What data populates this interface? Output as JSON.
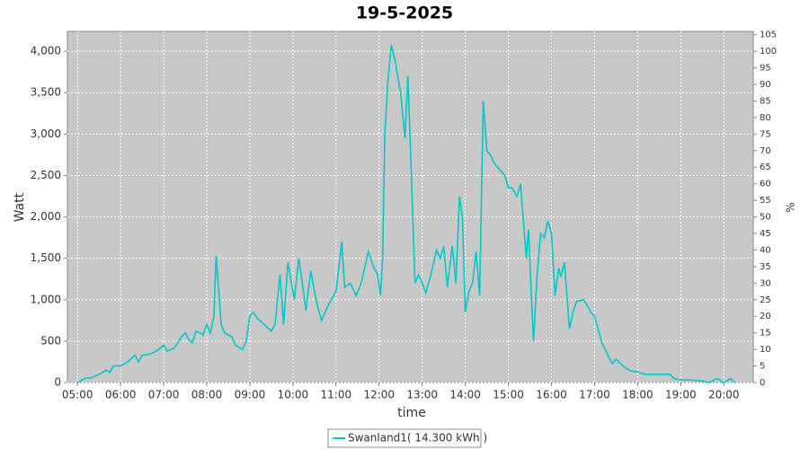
{
  "chart_data": {
    "type": "line",
    "title": "19-5-2025",
    "x_label": "time",
    "y_label": "Watt",
    "y2_label": "%",
    "x": [
      "05:00",
      "05:10",
      "05:20",
      "05:30",
      "05:40",
      "05:45",
      "05:50",
      "06:00",
      "06:10",
      "06:20",
      "06:25",
      "06:30",
      "06:40",
      "06:50",
      "07:00",
      "07:05",
      "07:15",
      "07:25",
      "07:30",
      "07:35",
      "07:40",
      "07:45",
      "07:55",
      "08:00",
      "08:05",
      "08:10",
      "08:13",
      "08:16",
      "08:20",
      "08:25",
      "08:35",
      "08:40",
      "08:50",
      "08:55",
      "09:00",
      "09:05",
      "09:10",
      "09:20",
      "09:30",
      "09:35",
      "09:42",
      "09:47",
      "09:53",
      "09:58",
      "10:02",
      "10:08",
      "10:13",
      "10:18",
      "10:25",
      "10:30",
      "10:35",
      "10:40",
      "10:50",
      "11:00",
      "11:08",
      "11:12",
      "11:20",
      "11:28",
      "11:35",
      "11:45",
      "11:52",
      "11:58",
      "12:02",
      "12:05",
      "12:08",
      "12:12",
      "12:17",
      "12:22",
      "12:30",
      "12:36",
      "12:40",
      "12:45",
      "12:50",
      "12:55",
      "13:00",
      "13:05",
      "13:12",
      "13:20",
      "13:25",
      "13:30",
      "13:35",
      "13:42",
      "13:47",
      "13:52",
      "13:56",
      "14:00",
      "14:05",
      "14:10",
      "14:15",
      "14:20",
      "14:25",
      "14:30",
      "14:35",
      "14:40",
      "14:45",
      "14:55",
      "15:00",
      "15:05",
      "15:12",
      "15:17",
      "15:25",
      "15:28",
      "15:35",
      "15:40",
      "15:45",
      "15:50",
      "15:55",
      "16:00",
      "16:05",
      "16:10",
      "16:13",
      "16:18",
      "16:25",
      "16:30",
      "16:35",
      "16:45",
      "16:55",
      "17:00",
      "17:05",
      "17:10",
      "17:15",
      "17:20",
      "17:25",
      "17:30",
      "17:40",
      "17:50",
      "18:00",
      "18:10",
      "18:30",
      "18:45",
      "18:50",
      "19:00",
      "19:15",
      "19:30",
      "19:40",
      "19:50",
      "20:00",
      "20:10",
      "20:15"
    ],
    "series": [
      {
        "name": "Swanland1( 14.300 kWh )",
        "color": "#00c8c8",
        "values": [
          0,
          50,
          60,
          100,
          150,
          120,
          200,
          200,
          250,
          330,
          250,
          330,
          340,
          380,
          450,
          380,
          420,
          550,
          600,
          520,
          480,
          620,
          580,
          700,
          600,
          800,
          1530,
          1200,
          700,
          600,
          550,
          450,
          400,
          500,
          800,
          850,
          780,
          700,
          620,
          700,
          1300,
          700,
          1450,
          1200,
          1000,
          1500,
          1200,
          870,
          1350,
          1100,
          900,
          750,
          950,
          1100,
          1700,
          1150,
          1200,
          1050,
          1200,
          1580,
          1400,
          1300,
          1050,
          1500,
          3000,
          3600,
          4080,
          3900,
          3500,
          2950,
          3700,
          2500,
          1200,
          1300,
          1200,
          1080,
          1300,
          1600,
          1500,
          1650,
          1150,
          1650,
          1200,
          2250,
          2000,
          850,
          1100,
          1200,
          1580,
          1050,
          3400,
          2800,
          2750,
          2650,
          2600,
          2500,
          2350,
          2350,
          2250,
          2400,
          1500,
          1850,
          500,
          1300,
          1800,
          1750,
          1950,
          1800,
          1050,
          1380,
          1280,
          1450,
          650,
          850,
          980,
          1000,
          850,
          800,
          650,
          480,
          400,
          300,
          230,
          280,
          200,
          140,
          130,
          100,
          100,
          100,
          50,
          30,
          30,
          20,
          0,
          50,
          0,
          50,
          0
        ]
      }
    ],
    "xlim": [
      "04:46",
      "20:41"
    ],
    "xticks": [
      "05:00",
      "06:00",
      "07:00",
      "08:00",
      "09:00",
      "10:00",
      "11:00",
      "12:00",
      "13:00",
      "14:00",
      "15:00",
      "16:00",
      "17:00",
      "18:00",
      "19:00",
      "20:00"
    ],
    "ylim": [
      0,
      4240
    ],
    "yticks": [
      0,
      500,
      {
        "value": 1000,
        "label": "1,000"
      },
      {
        "value": 1500,
        "label": "1,500"
      },
      {
        "value": 2000,
        "label": "2,000"
      },
      {
        "value": 2500,
        "label": "2,500"
      },
      {
        "value": 3000,
        "label": "3,000"
      },
      {
        "value": 3500,
        "label": "3,500"
      },
      {
        "value": 4000,
        "label": "4,000"
      }
    ],
    "y2lim": [
      0,
      106
    ],
    "y2ticks": [
      0,
      5,
      10,
      15,
      20,
      25,
      30,
      35,
      40,
      45,
      50,
      55,
      60,
      65,
      70,
      75,
      80,
      85,
      90,
      95,
      100,
      105
    ],
    "grid": true,
    "legend": "bottom"
  }
}
